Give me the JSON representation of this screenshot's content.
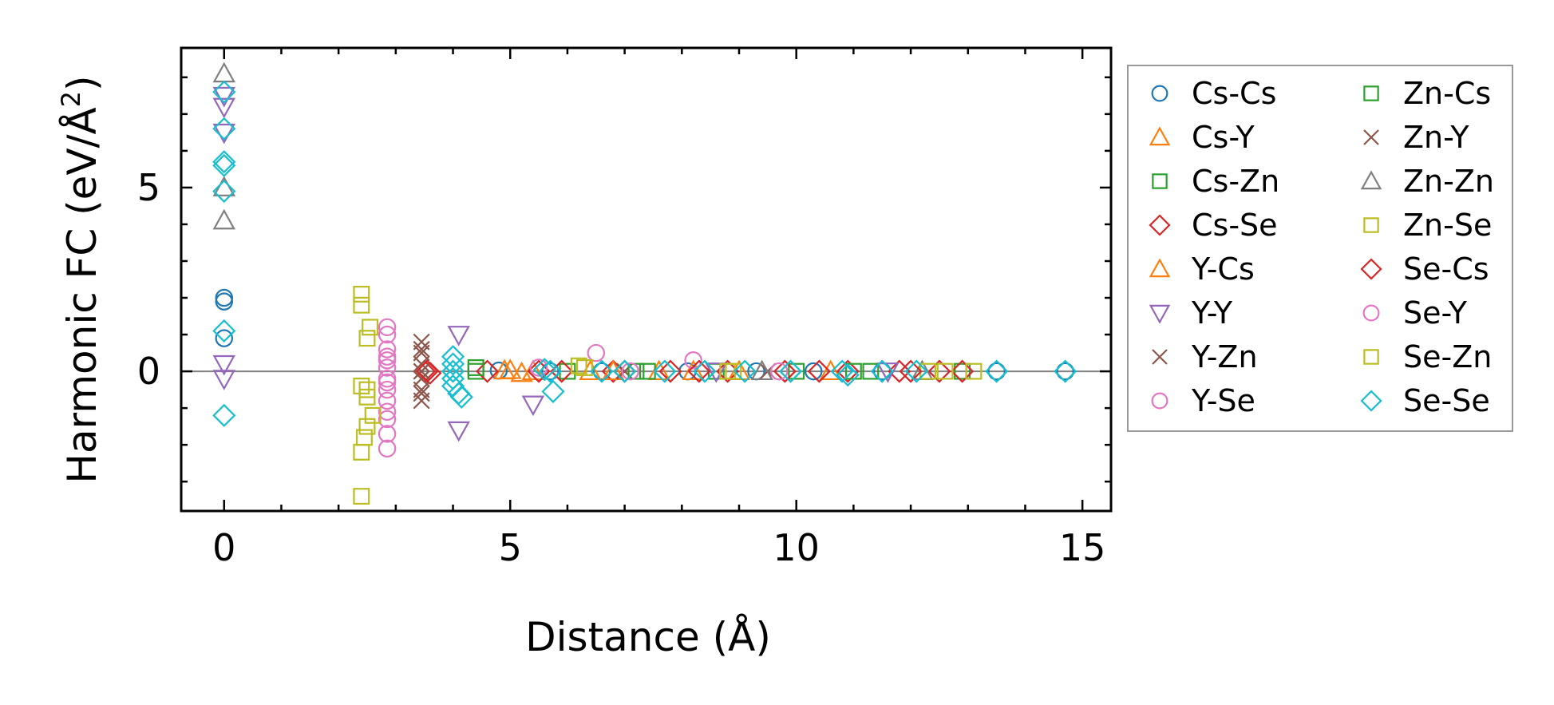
{
  "chart_data": {
    "type": "scatter",
    "xlabel": "Distance (Å)",
    "ylabel": "Harmonic FC (eV/Å",
    "ylabel_sup": "2",
    "ylabel_close": ")",
    "xlim": [
      -0.75,
      15.5
    ],
    "ylim": [
      -3.8,
      8.8
    ],
    "xticks": [
      0,
      5,
      10,
      15
    ],
    "yticks": [
      0,
      5
    ],
    "x_minor_step": 1,
    "y_minor_step": 1,
    "reference_line_y": 0,
    "grid": false,
    "legend_position": "right-outside",
    "series": [
      {
        "name": "Cs-Cs",
        "marker": "circle",
        "color": "#1f77b4",
        "points": [
          [
            0,
            2.0
          ],
          [
            0,
            1.9
          ],
          [
            0,
            0.9
          ],
          [
            4.8,
            0.02
          ],
          [
            5.7,
            0.0
          ],
          [
            6.6,
            0.0
          ],
          [
            8.1,
            0.0
          ],
          [
            9.3,
            0.0
          ],
          [
            10.3,
            0.0
          ],
          [
            11.5,
            0.0
          ],
          [
            13.5,
            0.0
          ],
          [
            14.7,
            0.0
          ]
        ]
      },
      {
        "name": "Cs-Y",
        "marker": "triangle-up",
        "color": "#ff7f0e",
        "points": [
          [
            4.9,
            0.02
          ],
          [
            5.2,
            -0.05
          ],
          [
            6.4,
            0.0
          ],
          [
            7.6,
            0.0
          ],
          [
            9.0,
            0.0
          ],
          [
            10.6,
            0.0
          ]
        ]
      },
      {
        "name": "Cs-Zn",
        "marker": "square",
        "color": "#2ca02c",
        "points": [
          [
            4.4,
            0.0
          ],
          [
            6.0,
            0.0
          ],
          [
            7.4,
            0.0
          ],
          [
            8.6,
            0.0
          ],
          [
            10.0,
            0.0
          ],
          [
            11.3,
            0.0
          ],
          [
            12.9,
            0.0
          ]
        ]
      },
      {
        "name": "Cs-Se",
        "marker": "diamond",
        "color": "#d62728",
        "points": [
          [
            3.5,
            0.0
          ],
          [
            3.6,
            -0.05
          ],
          [
            4.6,
            0.0
          ],
          [
            5.9,
            0.0
          ],
          [
            6.8,
            0.0
          ],
          [
            7.8,
            0.0
          ],
          [
            8.8,
            0.0
          ],
          [
            9.8,
            0.0
          ],
          [
            10.9,
            0.0
          ],
          [
            11.8,
            0.0
          ],
          [
            12.5,
            0.0
          ],
          [
            12.9,
            0.0
          ]
        ]
      },
      {
        "name": "Y-Cs",
        "marker": "triangle-up",
        "color": "#ff7f0e",
        "points": [
          [
            5.0,
            0.03
          ],
          [
            5.4,
            0.0
          ],
          [
            6.8,
            0.0
          ],
          [
            8.2,
            0.0
          ]
        ]
      },
      {
        "name": "Y-Y",
        "marker": "triangle-down",
        "color": "#9467bd",
        "points": [
          [
            0,
            7.5
          ],
          [
            0,
            7.2
          ],
          [
            0,
            6.5
          ],
          [
            0,
            0.2
          ],
          [
            0,
            -0.2
          ],
          [
            4.1,
            1.0
          ],
          [
            4.1,
            -1.6
          ],
          [
            5.4,
            -0.9
          ],
          [
            8.6,
            0.0
          ],
          [
            11.6,
            0.0
          ]
        ]
      },
      {
        "name": "Y-Zn",
        "marker": "x",
        "color": "#8c564b",
        "points": [
          [
            3.45,
            0.8
          ],
          [
            3.45,
            0.5
          ],
          [
            3.45,
            0.2
          ],
          [
            3.45,
            -0.2
          ],
          [
            3.45,
            -0.5
          ],
          [
            3.45,
            -0.8
          ],
          [
            7.0,
            0.0
          ],
          [
            9.5,
            0.0
          ]
        ]
      },
      {
        "name": "Y-Se",
        "marker": "circle",
        "color": "#e377c2",
        "points": [
          [
            2.85,
            1.2
          ],
          [
            2.85,
            1.0
          ],
          [
            2.85,
            0.6
          ],
          [
            2.85,
            0.3
          ],
          [
            2.85,
            0.1
          ],
          [
            2.85,
            -0.2
          ],
          [
            2.85,
            -0.5
          ],
          [
            2.85,
            -0.8
          ],
          [
            2.85,
            -1.1
          ],
          [
            2.85,
            -1.3
          ],
          [
            2.85,
            -1.7
          ],
          [
            2.85,
            -2.1
          ],
          [
            6.5,
            0.5
          ],
          [
            8.2,
            0.3
          ]
        ]
      },
      {
        "name": "Zn-Cs",
        "marker": "square",
        "color": "#2ca02c",
        "points": [
          [
            4.4,
            0.1
          ],
          [
            7.2,
            0.0
          ],
          [
            11.0,
            0.0
          ]
        ]
      },
      {
        "name": "Zn-Y",
        "marker": "x",
        "color": "#8c564b",
        "points": [
          [
            3.45,
            0.6
          ],
          [
            3.45,
            0.0
          ],
          [
            3.45,
            -0.6
          ]
        ]
      },
      {
        "name": "Zn-Zn",
        "marker": "triangle-up",
        "color": "#7f7f7f",
        "points": [
          [
            0,
            8.1
          ],
          [
            0,
            5.0
          ],
          [
            0,
            4.1
          ],
          [
            9.4,
            0.0
          ],
          [
            12.2,
            0.0
          ]
        ]
      },
      {
        "name": "Zn-Se",
        "marker": "square",
        "color": "#bcbd22",
        "points": [
          [
            2.4,
            2.1
          ],
          [
            2.4,
            1.8
          ],
          [
            2.55,
            1.2
          ],
          [
            2.5,
            0.9
          ],
          [
            2.4,
            -0.4
          ],
          [
            2.5,
            -0.5
          ],
          [
            2.6,
            -1.2
          ],
          [
            2.5,
            -1.5
          ],
          [
            2.45,
            -1.8
          ],
          [
            2.4,
            -2.2
          ],
          [
            2.4,
            -3.4
          ],
          [
            6.2,
            0.15
          ],
          [
            8.8,
            0.0
          ],
          [
            12.3,
            0.0
          ],
          [
            13.1,
            0.0
          ]
        ]
      },
      {
        "name": "Se-Cs",
        "marker": "diamond",
        "color": "#d62728",
        "points": [
          [
            3.55,
            0.0
          ],
          [
            5.5,
            0.0
          ],
          [
            7.0,
            0.0
          ],
          [
            8.3,
            0.0
          ],
          [
            10.4,
            0.0
          ],
          [
            12.0,
            0.0
          ]
        ]
      },
      {
        "name": "Se-Y",
        "marker": "circle",
        "color": "#e377c2",
        "points": [
          [
            2.85,
            0.4
          ],
          [
            2.85,
            -0.3
          ],
          [
            5.5,
            0.1
          ],
          [
            7.1,
            0.0
          ],
          [
            9.7,
            0.0
          ]
        ]
      },
      {
        "name": "Se-Zn",
        "marker": "square",
        "color": "#bcbd22",
        "points": [
          [
            2.5,
            -0.7
          ],
          [
            6.3,
            0.1
          ],
          [
            8.9,
            0.0
          ],
          [
            12.6,
            0.0
          ]
        ]
      },
      {
        "name": "Se-Se",
        "marker": "diamond",
        "color": "#17becf",
        "points": [
          [
            0,
            7.6
          ],
          [
            0,
            6.6
          ],
          [
            0,
            5.7
          ],
          [
            0,
            5.6
          ],
          [
            0,
            4.9
          ],
          [
            0,
            1.1
          ],
          [
            0,
            -1.2
          ],
          [
            4.0,
            0.4
          ],
          [
            4.0,
            0.2
          ],
          [
            4.0,
            0.0
          ],
          [
            4.0,
            -0.2
          ],
          [
            4.0,
            -0.4
          ],
          [
            4.1,
            -0.6
          ],
          [
            4.15,
            -0.7
          ],
          [
            5.6,
            0.05
          ],
          [
            5.7,
            0.0
          ],
          [
            5.75,
            -0.55
          ],
          [
            6.6,
            0.0
          ],
          [
            7.0,
            0.0
          ],
          [
            7.7,
            0.0
          ],
          [
            8.4,
            0.0
          ],
          [
            9.1,
            0.0
          ],
          [
            9.9,
            0.0
          ],
          [
            10.8,
            0.0
          ],
          [
            10.9,
            -0.1
          ],
          [
            11.5,
            0.0
          ],
          [
            12.1,
            0.0
          ],
          [
            13.5,
            0.0
          ],
          [
            14.7,
            0.0
          ]
        ]
      }
    ]
  }
}
